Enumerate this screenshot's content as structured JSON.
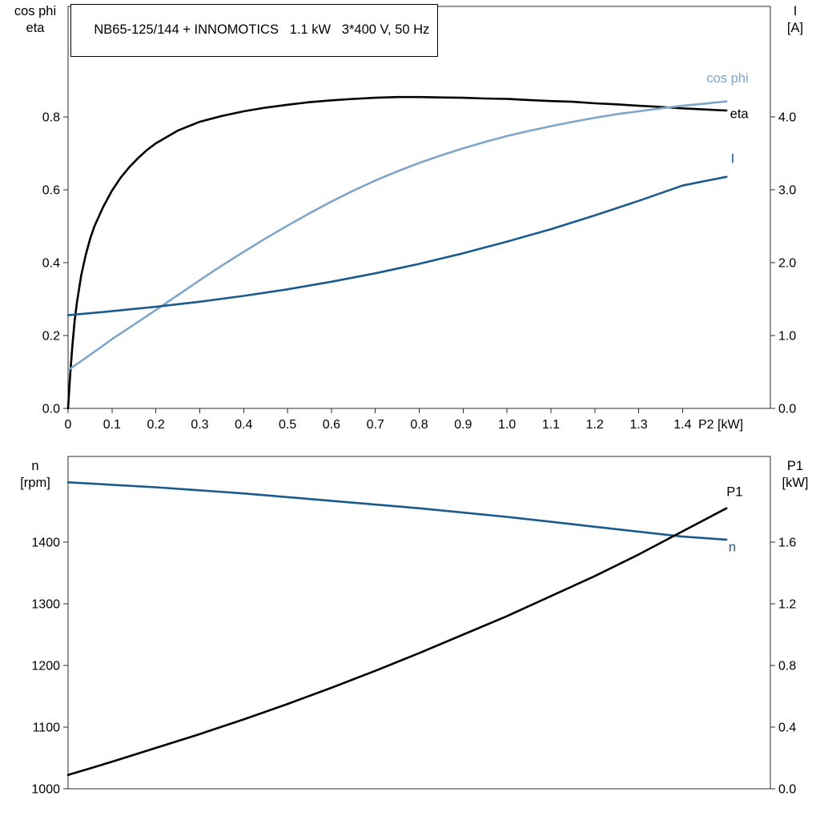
{
  "title_box": {
    "text": "NB65-125/144 + INNOMOTICS   1.1 kW   3*400 V, 50 Hz"
  },
  "colors": {
    "background": "#ffffff",
    "axis": "#2b2b2b",
    "text": "#000000",
    "black_curve": "#000000",
    "dark_blue_curve": "#1a5a8c",
    "light_blue_curve": "#7fa5c8"
  },
  "chart_data": [
    {
      "type": "line",
      "name": "motor-performance",
      "x_axis": {
        "label": "P2 [kW]",
        "range": [
          0,
          1.6
        ],
        "show_tick_labels": true,
        "tick_values": [
          0,
          0.1,
          0.2,
          0.3,
          0.4,
          0.5,
          0.6,
          0.7,
          0.8,
          0.9,
          1.0,
          1.1,
          1.2,
          1.3,
          1.4
        ],
        "tick_labels": [
          "0",
          "0.1",
          "0.2",
          "0.3",
          "0.4",
          "0.5",
          "0.6",
          "0.7",
          "0.8",
          "0.9",
          "1.0",
          "1.1",
          "1.2",
          "1.3",
          "1.4"
        ]
      },
      "left_axis": {
        "label_lines": [
          "cos phi",
          "eta"
        ],
        "range": [
          0,
          1.104
        ],
        "tick_values": [
          0,
          0.2,
          0.4,
          0.6,
          0.8
        ],
        "tick_labels": [
          "0.0",
          "0.2",
          "0.4",
          "0.6",
          "0.8"
        ]
      },
      "right_axis": {
        "label_lines": [
          "I",
          "[A]"
        ],
        "range": [
          0,
          5.52
        ],
        "tick_values": [
          0,
          1,
          2,
          3,
          4
        ],
        "tick_labels": [
          "0.0",
          "1.0",
          "2.0",
          "3.0",
          "4.0"
        ]
      },
      "series": [
        {
          "name": "eta",
          "axis": "left",
          "color_key": "black_curve",
          "width": 2.6,
          "label": {
            "text": "eta",
            "x": 1.55,
            "y": 0.797,
            "anchor": "end"
          },
          "points": [
            [
              0,
              0
            ],
            [
              0.005,
              0.095
            ],
            [
              0.01,
              0.175
            ],
            [
              0.015,
              0.24
            ],
            [
              0.02,
              0.29
            ],
            [
              0.03,
              0.365
            ],
            [
              0.04,
              0.42
            ],
            [
              0.05,
              0.465
            ],
            [
              0.06,
              0.5
            ],
            [
              0.08,
              0.553
            ],
            [
              0.1,
              0.598
            ],
            [
              0.12,
              0.634
            ],
            [
              0.14,
              0.663
            ],
            [
              0.16,
              0.688
            ],
            [
              0.18,
              0.71
            ],
            [
              0.2,
              0.728
            ],
            [
              0.25,
              0.763
            ],
            [
              0.3,
              0.787
            ],
            [
              0.35,
              0.803
            ],
            [
              0.4,
              0.816
            ],
            [
              0.45,
              0.826
            ],
            [
              0.5,
              0.834
            ],
            [
              0.55,
              0.841
            ],
            [
              0.6,
              0.846
            ],
            [
              0.65,
              0.85
            ],
            [
              0.7,
              0.853
            ],
            [
              0.75,
              0.855
            ],
            [
              0.8,
              0.855
            ],
            [
              0.85,
              0.854
            ],
            [
              0.9,
              0.853
            ],
            [
              0.95,
              0.851
            ],
            [
              1.0,
              0.85
            ],
            [
              1.05,
              0.847
            ],
            [
              1.1,
              0.844
            ],
            [
              1.15,
              0.842
            ],
            [
              1.2,
              0.838
            ],
            [
              1.25,
              0.835
            ],
            [
              1.3,
              0.831
            ],
            [
              1.35,
              0.828
            ],
            [
              1.4,
              0.824
            ],
            [
              1.45,
              0.821
            ],
            [
              1.5,
              0.818
            ]
          ]
        },
        {
          "name": "cos-phi",
          "axis": "left",
          "color_key": "light_blue_curve",
          "width": 2.6,
          "label": {
            "text": "cos phi",
            "x": 1.55,
            "y": 0.895,
            "anchor": "end"
          },
          "points": [
            [
              0,
              0.105
            ],
            [
              0.05,
              0.147
            ],
            [
              0.1,
              0.19
            ],
            [
              0.15,
              0.23
            ],
            [
              0.2,
              0.27
            ],
            [
              0.25,
              0.311
            ],
            [
              0.3,
              0.352
            ],
            [
              0.35,
              0.392
            ],
            [
              0.4,
              0.43
            ],
            [
              0.45,
              0.467
            ],
            [
              0.5,
              0.502
            ],
            [
              0.55,
              0.536
            ],
            [
              0.6,
              0.568
            ],
            [
              0.65,
              0.598
            ],
            [
              0.7,
              0.626
            ],
            [
              0.75,
              0.651
            ],
            [
              0.8,
              0.674
            ],
            [
              0.85,
              0.695
            ],
            [
              0.9,
              0.714
            ],
            [
              0.95,
              0.732
            ],
            [
              1.0,
              0.748
            ],
            [
              1.05,
              0.762
            ],
            [
              1.1,
              0.775
            ],
            [
              1.15,
              0.787
            ],
            [
              1.2,
              0.798
            ],
            [
              1.25,
              0.808
            ],
            [
              1.3,
              0.816
            ],
            [
              1.35,
              0.824
            ],
            [
              1.4,
              0.831
            ],
            [
              1.45,
              0.837
            ],
            [
              1.5,
              0.843
            ]
          ]
        },
        {
          "name": "current",
          "axis": "right",
          "color_key": "dark_blue_curve",
          "width": 2.6,
          "label": {
            "text": "I",
            "x": 1.51,
            "y": 3.37,
            "anchor": "start"
          },
          "points": [
            [
              0,
              1.28
            ],
            [
              0.1,
              1.335
            ],
            [
              0.2,
              1.395
            ],
            [
              0.3,
              1.465
            ],
            [
              0.4,
              1.545
            ],
            [
              0.5,
              1.635
            ],
            [
              0.6,
              1.74
            ],
            [
              0.7,
              1.855
            ],
            [
              0.8,
              1.985
            ],
            [
              0.9,
              2.13
            ],
            [
              1.0,
              2.29
            ],
            [
              1.1,
              2.46
            ],
            [
              1.2,
              2.65
            ],
            [
              1.3,
              2.85
            ],
            [
              1.4,
              3.06
            ],
            [
              1.5,
              3.18
            ]
          ]
        }
      ]
    },
    {
      "type": "line",
      "name": "speed-and-power",
      "x_axis": {
        "label": "",
        "range": [
          0,
          1.6
        ],
        "show_tick_labels": false,
        "tick_values": [],
        "tick_labels": []
      },
      "left_axis": {
        "label_lines": [
          "n",
          "[rpm]"
        ],
        "range": [
          1000,
          1539
        ],
        "tick_values": [
          1000,
          1100,
          1200,
          1300,
          1400
        ],
        "tick_labels": [
          "1000",
          "1100",
          "1200",
          "1300",
          "1400"
        ]
      },
      "right_axis": {
        "label_lines": [
          "P1",
          "[kW]"
        ],
        "range": [
          0,
          2.156
        ],
        "tick_values": [
          0,
          0.4,
          0.8,
          1.2,
          1.6
        ],
        "tick_labels": [
          "0.0",
          "0.4",
          "0.8",
          "1.2",
          "1.6"
        ]
      },
      "series": [
        {
          "name": "n",
          "axis": "left",
          "color_key": "dark_blue_curve",
          "width": 2.6,
          "label": {
            "text": "n",
            "x": 1.505,
            "y": 1385,
            "anchor": "start"
          },
          "points": [
            [
              0,
              1497
            ],
            [
              0.1,
              1493
            ],
            [
              0.2,
              1489
            ],
            [
              0.3,
              1484
            ],
            [
              0.4,
              1479
            ],
            [
              0.5,
              1473
            ],
            [
              0.6,
              1467
            ],
            [
              0.7,
              1461
            ],
            [
              0.8,
              1455
            ],
            [
              0.9,
              1448
            ],
            [
              1.0,
              1441
            ],
            [
              1.1,
              1433
            ],
            [
              1.2,
              1425
            ],
            [
              1.3,
              1417
            ],
            [
              1.4,
              1409
            ],
            [
              1.5,
              1404
            ]
          ]
        },
        {
          "name": "p1",
          "axis": "right",
          "color_key": "black_curve",
          "width": 2.6,
          "label": {
            "text": "P1",
            "x": 1.5,
            "y": 1.9,
            "anchor": "start"
          },
          "points": [
            [
              0,
              0.09
            ],
            [
              0.1,
              0.175
            ],
            [
              0.2,
              0.265
            ],
            [
              0.3,
              0.355
            ],
            [
              0.4,
              0.45
            ],
            [
              0.5,
              0.55
            ],
            [
              0.6,
              0.655
            ],
            [
              0.7,
              0.765
            ],
            [
              0.8,
              0.88
            ],
            [
              0.9,
              1.0
            ],
            [
              1.0,
              1.12
            ],
            [
              1.1,
              1.25
            ],
            [
              1.2,
              1.38
            ],
            [
              1.3,
              1.52
            ],
            [
              1.4,
              1.67
            ],
            [
              1.5,
              1.82
            ]
          ]
        }
      ]
    }
  ]
}
